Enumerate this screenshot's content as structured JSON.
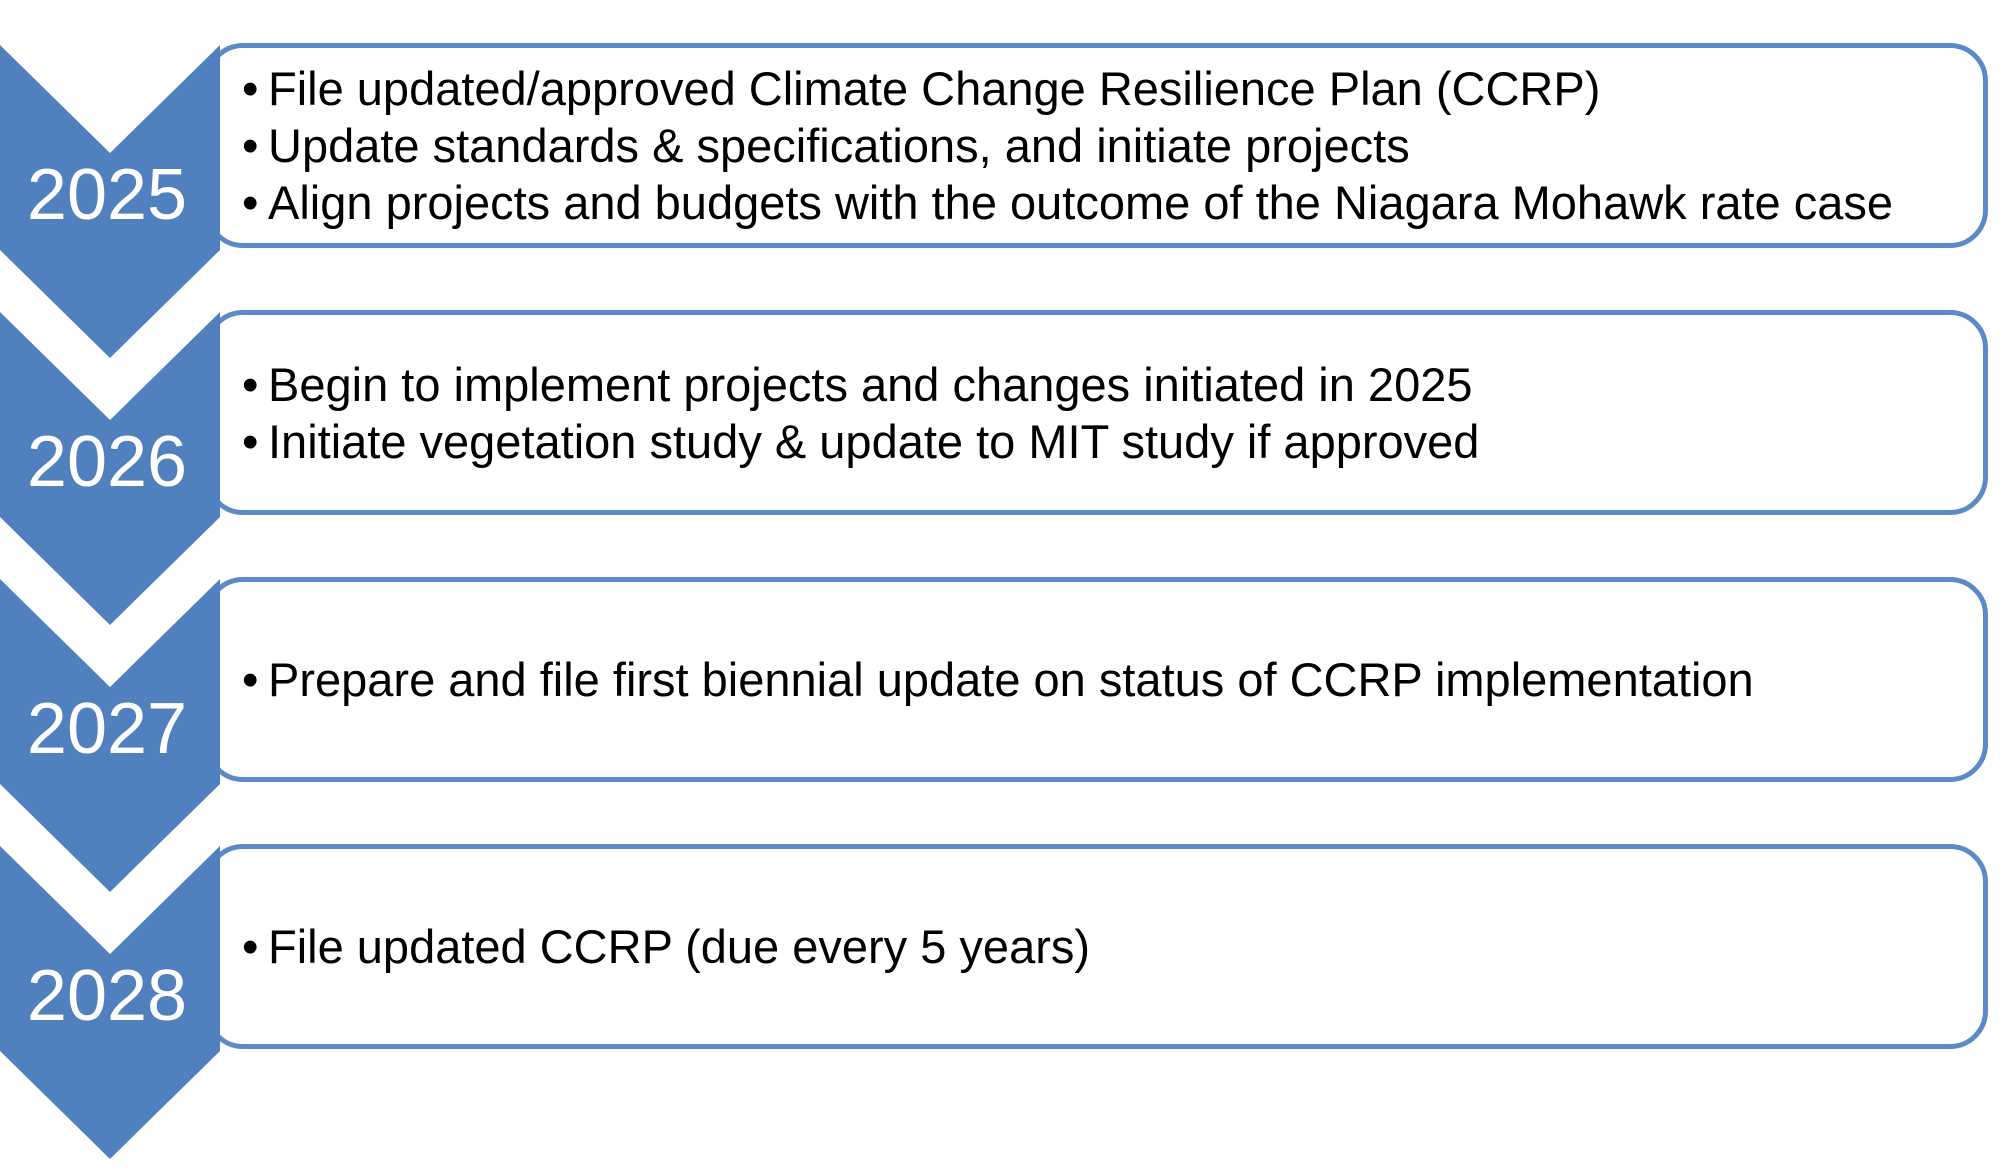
{
  "diagram_type": "timeline-process-diagram",
  "bullet_char": "•",
  "colors": {
    "chevron_blue": "#5080bd",
    "box_border_blue": "#5b8ac6",
    "box_background": "#ffffff",
    "year_text": "#ffffff",
    "bullet_text": "#000000"
  },
  "rows": [
    {
      "year": "2025",
      "bullets": [
        "File updated/approved Climate Change Resilience Plan (CCRP)",
        "Update standards & specifications, and initiate projects",
        "Align projects and budgets with the outcome of the Niagara Mohawk rate case"
      ]
    },
    {
      "year": "2026",
      "bullets": [
        "Begin to implement projects and changes initiated in 2025",
        "Initiate vegetation study & update to MIT study if approved"
      ]
    },
    {
      "year": "2027",
      "bullets": [
        "Prepare and file first biennial update on status of CCRP implementation"
      ]
    },
    {
      "year": "2028",
      "bullets": [
        "File updated CCRP (due every 5 years)"
      ]
    }
  ]
}
